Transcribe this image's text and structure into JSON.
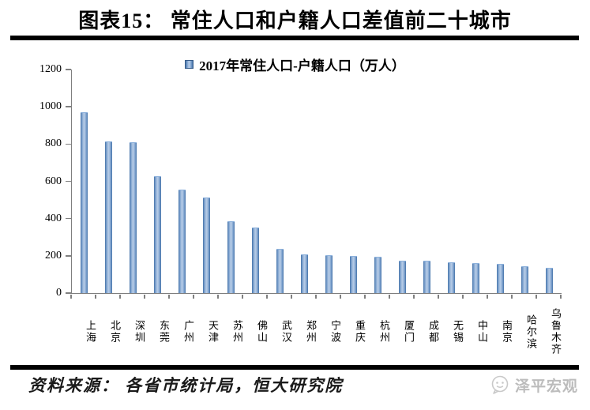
{
  "page": {
    "title": "图表15： 常住人口和户籍人口差值前二十城市",
    "source_note": "资料来源： 各省市统计局，恒大研究院",
    "brand": "泽平宏观"
  },
  "chart_data": {
    "type": "bar",
    "title": "常住人口和户籍人口差值前二十城市",
    "legend": [
      "2017年常住人口-户籍人口（万人）"
    ],
    "legend_position": "top",
    "categories": [
      "上海",
      "北京",
      "深圳",
      "东莞",
      "广州",
      "天津",
      "苏州",
      "佛山",
      "武汉",
      "郑州",
      "宁波",
      "重庆",
      "杭州",
      "厦门",
      "成都",
      "无锡",
      "中山",
      "南京",
      "哈尔滨",
      "乌鲁木齐"
    ],
    "values": [
      965,
      812,
      806,
      622,
      552,
      510,
      380,
      346,
      235,
      205,
      200,
      195,
      192,
      170,
      168,
      163,
      158,
      152,
      140,
      130
    ],
    "xlabel": "",
    "ylabel": "",
    "ylim": [
      0,
      1200
    ],
    "yticks": [
      0,
      200,
      400,
      600,
      800,
      1000,
      1200
    ],
    "grid": false,
    "bar_color": "#4f81bd",
    "axis_color": "#7f7f7f"
  }
}
